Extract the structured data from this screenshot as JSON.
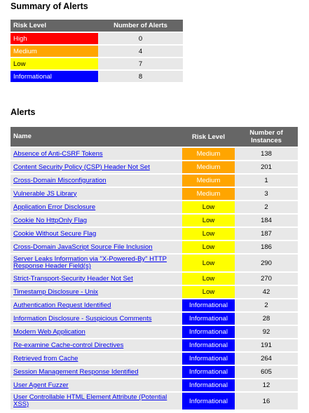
{
  "summary": {
    "title": "Summary of Alerts",
    "headers": {
      "risk": "Risk Level",
      "count": "Number of Alerts"
    },
    "rows": [
      {
        "risk": "High",
        "count": "0",
        "level": "high"
      },
      {
        "risk": "Medium",
        "count": "4",
        "level": "medium"
      },
      {
        "risk": "Low",
        "count": "7",
        "level": "low"
      },
      {
        "risk": "Informational",
        "count": "8",
        "level": "info"
      }
    ]
  },
  "alerts": {
    "title": "Alerts",
    "headers": {
      "name": "Name",
      "risk": "Risk Level",
      "instances": "Number of Instances"
    },
    "rows": [
      {
        "name": "Absence of Anti-CSRF Tokens",
        "risk": "Medium",
        "level": "medium",
        "instances": "138"
      },
      {
        "name": "Content Security Policy (CSP) Header Not Set",
        "risk": "Medium",
        "level": "medium",
        "instances": "201"
      },
      {
        "name": "Cross-Domain Misconfiguration",
        "risk": "Medium",
        "level": "medium",
        "instances": "1"
      },
      {
        "name": "Vulnerable JS Library",
        "risk": "Medium",
        "level": "medium",
        "instances": "3"
      },
      {
        "name": "Application Error Disclosure",
        "risk": "Low",
        "level": "low",
        "instances": "2"
      },
      {
        "name": "Cookie No HttpOnly Flag",
        "risk": "Low",
        "level": "low",
        "instances": "184"
      },
      {
        "name": "Cookie Without Secure Flag",
        "risk": "Low",
        "level": "low",
        "instances": "187"
      },
      {
        "name": "Cross-Domain JavaScript Source File Inclusion",
        "risk": "Low",
        "level": "low",
        "instances": "186"
      },
      {
        "name": "Server Leaks Information via \"X-Powered-By\" HTTP Response Header Field(s)",
        "risk": "Low",
        "level": "low",
        "instances": "290",
        "tall": true
      },
      {
        "name": "Strict-Transport-Security Header Not Set",
        "risk": "Low",
        "level": "low",
        "instances": "270"
      },
      {
        "name": "Timestamp Disclosure - Unix",
        "risk": "Low",
        "level": "low",
        "instances": "42"
      },
      {
        "name": "Authentication Request Identified",
        "risk": "Informational",
        "level": "info",
        "instances": "2"
      },
      {
        "name": "Information Disclosure - Suspicious Comments",
        "risk": "Informational",
        "level": "info",
        "instances": "28"
      },
      {
        "name": "Modern Web Application",
        "risk": "Informational",
        "level": "info",
        "instances": "92"
      },
      {
        "name": "Re-examine Cache-control Directives",
        "risk": "Informational",
        "level": "info",
        "instances": "191"
      },
      {
        "name": "Retrieved from Cache",
        "risk": "Informational",
        "level": "info",
        "instances": "264"
      },
      {
        "name": "Session Management Response Identified",
        "risk": "Informational",
        "level": "info",
        "instances": "605"
      },
      {
        "name": "User Agent Fuzzer",
        "risk": "Informational",
        "level": "info",
        "instances": "12"
      },
      {
        "name": "User Controllable HTML Element Attribute (Potential XSS)",
        "risk": "Informational",
        "level": "info",
        "instances": "16",
        "tall": true
      }
    ]
  },
  "colors": {
    "high": "#ff0000",
    "medium": "#ffa500",
    "low": "#ffff00",
    "info": "#0000ff",
    "header": "#666666",
    "cell": "#e8e8e8",
    "link": "#0000ee"
  }
}
